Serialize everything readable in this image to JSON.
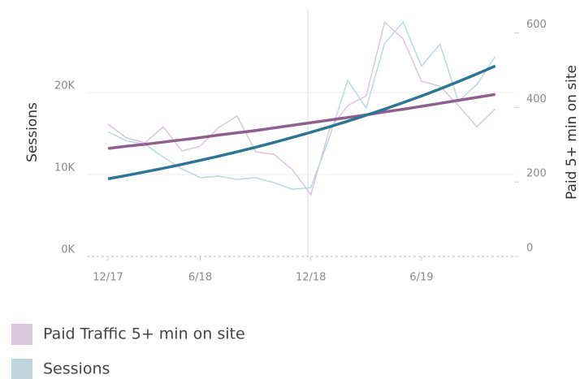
{
  "chart_data": {
    "type": "line",
    "y_axis_title": "Sessions",
    "y2_axis_title": "Paid 5+ min on site",
    "categories": [
      "12/17",
      null,
      null,
      null,
      null,
      "6/18",
      null,
      null,
      null,
      null,
      null,
      "12/18",
      null,
      null,
      null,
      null,
      null,
      "6/19",
      null,
      null,
      null,
      null
    ],
    "series": [
      {
        "name": "Paid Traffic 5+ min on site",
        "color": "#d9c6dc",
        "axis": "y2",
        "values": [
          355,
          318,
          305,
          348,
          283,
          296,
          346,
          377,
          281,
          274,
          233,
          166,
          340,
          405,
          431,
          629,
          584,
          470,
          457,
          405,
          348,
          396
        ]
      },
      {
        "name": "Sessions",
        "color": "#bfd6df",
        "values": [
          15200,
          14100,
          13700,
          12100,
          10700,
          9600,
          9800,
          9400,
          9600,
          9000,
          8200,
          8400,
          14500,
          21500,
          18100,
          26000,
          28600,
          23200,
          25900,
          18900,
          21000,
          24400
        ]
      },
      {
        "color": "#8e5f8f",
        "axis": "y2",
        "trend": true,
        "values": [
          290,
          296,
          301,
          307,
          313,
          319,
          326,
          332,
          338,
          345,
          352,
          359,
          366,
          373,
          380,
          388,
          395,
          403,
          411,
          419,
          427,
          435
        ]
      },
      {
        "color": "#2e7595",
        "trend": true,
        "values": [
          9467,
          9881,
          10313,
          10763,
          11233,
          11724,
          12236,
          12770,
          13328,
          13910,
          14518,
          15152,
          15814,
          16505,
          17226,
          17978,
          18763,
          19583,
          20438,
          21331,
          22263,
          23236
        ]
      }
    ],
    "ylim": [
      0,
      30000
    ],
    "yticks": [
      {
        "value": 0,
        "label": "0K"
      },
      {
        "value": 10000,
        "label": "10K"
      },
      {
        "value": 20000,
        "label": "20K"
      }
    ],
    "y2lim": [
      0,
      660
    ],
    "y2ticks": [
      0,
      200,
      400,
      600
    ],
    "grid": true
  }
}
